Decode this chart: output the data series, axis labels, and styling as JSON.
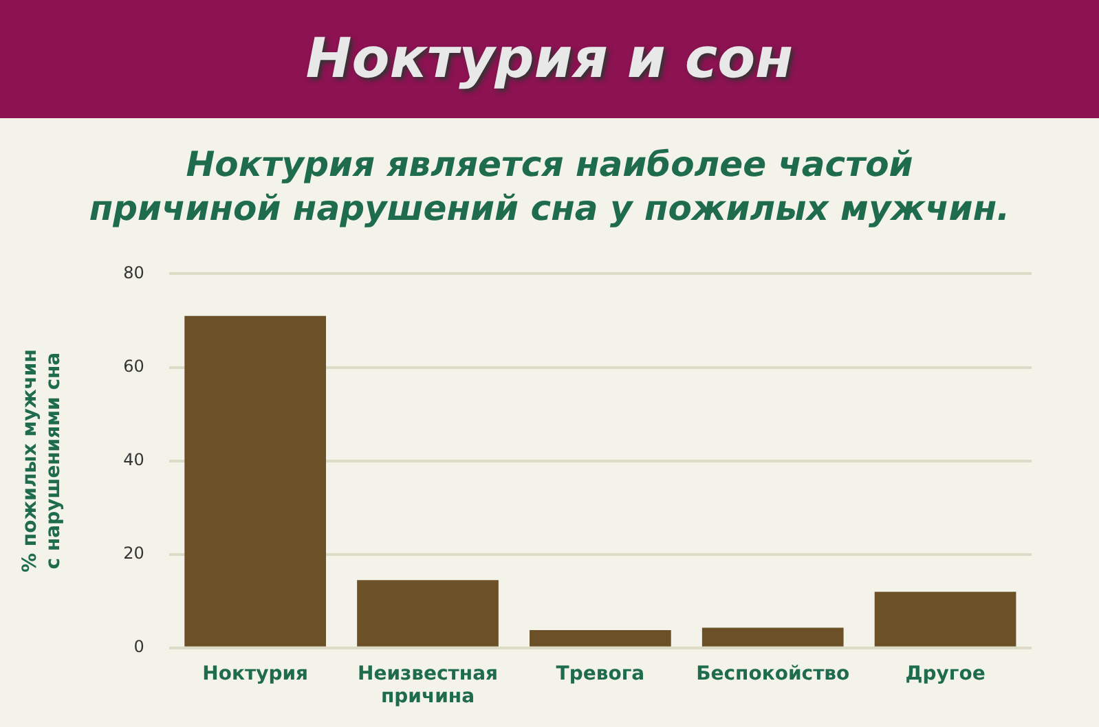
{
  "chart_data": {
    "type": "bar",
    "title": "Ноктурия и сон",
    "subtitle": "Ноктурия является наиболее частой\nпричиной нарушений сна у пожилых мужчин.",
    "ylabel": "% пожилых мужчин\nс нарушениями сна",
    "categories": [
      "Ноктурия",
      "Неизвестная причина",
      "Тревога",
      "Беспокойство",
      "Другое"
    ],
    "values": [
      71,
      14.5,
      3.8,
      4.3,
      12
    ],
    "color": "#6b5028",
    "ylim": [
      0,
      80
    ],
    "yticks": [
      0,
      20,
      40,
      60,
      80
    ],
    "grid": "y",
    "legend": false
  }
}
